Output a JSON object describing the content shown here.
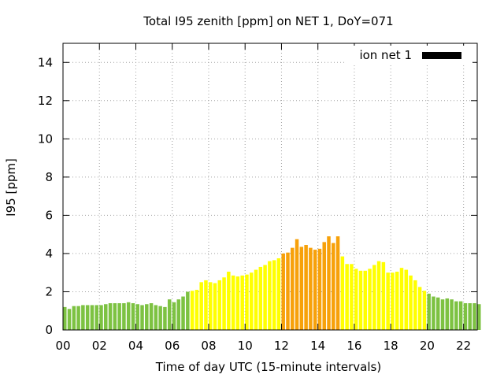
{
  "chart_data": {
    "type": "bar",
    "title": "Total I95 zenith [ppm] on NET 1, DoY=071",
    "xlabel": "Time of day UTC (15-minute intervals)",
    "ylabel": "I95 [ppm]",
    "xlim": [
      0,
      22.75
    ],
    "ylim": [
      0,
      15
    ],
    "yticks": [
      0,
      2,
      4,
      6,
      8,
      10,
      12,
      14
    ],
    "xticks": [
      0,
      2,
      4,
      6,
      8,
      10,
      12,
      14,
      16,
      18,
      20,
      22
    ],
    "xtick_labels": [
      "00",
      "02",
      "04",
      "06",
      "08",
      "10",
      "12",
      "14",
      "16",
      "18",
      "20",
      "22"
    ],
    "grid": true,
    "legend_position": "top-right",
    "legend": [
      {
        "name": "ion net 1",
        "color": "#000000"
      }
    ],
    "category_colors": {
      "green": "#7dc242",
      "yellow": "#ffff00",
      "orange": "#f7a10a"
    },
    "interval_hours": 0.25,
    "values": [
      1.2,
      1.1,
      1.25,
      1.25,
      1.3,
      1.3,
      1.3,
      1.3,
      1.3,
      1.35,
      1.4,
      1.4,
      1.4,
      1.4,
      1.45,
      1.4,
      1.35,
      1.3,
      1.35,
      1.4,
      1.3,
      1.25,
      1.2,
      1.6,
      1.45,
      1.6,
      1.75,
      2.0,
      2.05,
      2.1,
      2.5,
      2.6,
      2.5,
      2.45,
      2.6,
      2.75,
      3.05,
      2.85,
      2.8,
      2.85,
      2.9,
      3.0,
      3.15,
      3.3,
      3.4,
      3.6,
      3.65,
      3.75,
      4.0,
      4.05,
      4.3,
      4.75,
      4.35,
      4.45,
      4.3,
      4.2,
      4.25,
      4.6,
      4.9,
      4.55,
      4.9,
      3.85,
      3.45,
      3.45,
      3.2,
      3.1,
      3.1,
      3.2,
      3.4,
      3.6,
      3.55,
      3.0,
      3.0,
      3.05,
      3.25,
      3.15,
      2.85,
      2.6,
      2.25,
      2.05,
      1.9,
      1.75,
      1.7,
      1.6,
      1.65,
      1.6,
      1.5,
      1.5,
      1.4,
      1.4,
      1.4,
      1.35
    ],
    "bar_categories": [
      "green",
      "green",
      "green",
      "green",
      "green",
      "green",
      "green",
      "green",
      "green",
      "green",
      "green",
      "green",
      "green",
      "green",
      "green",
      "green",
      "green",
      "green",
      "green",
      "green",
      "green",
      "green",
      "green",
      "green",
      "green",
      "green",
      "green",
      "green",
      "yellow",
      "yellow",
      "yellow",
      "yellow",
      "yellow",
      "yellow",
      "yellow",
      "yellow",
      "yellow",
      "yellow",
      "yellow",
      "yellow",
      "yellow",
      "yellow",
      "yellow",
      "yellow",
      "yellow",
      "yellow",
      "yellow",
      "yellow",
      "orange",
      "orange",
      "orange",
      "orange",
      "orange",
      "orange",
      "orange",
      "orange",
      "orange",
      "orange",
      "orange",
      "orange",
      "orange",
      "yellow",
      "yellow",
      "yellow",
      "yellow",
      "yellow",
      "yellow",
      "yellow",
      "yellow",
      "yellow",
      "yellow",
      "yellow",
      "yellow",
      "yellow",
      "yellow",
      "yellow",
      "yellow",
      "yellow",
      "yellow",
      "yellow",
      "green",
      "green",
      "green",
      "green",
      "green",
      "green",
      "green",
      "green",
      "green",
      "green",
      "green",
      "green"
    ]
  }
}
